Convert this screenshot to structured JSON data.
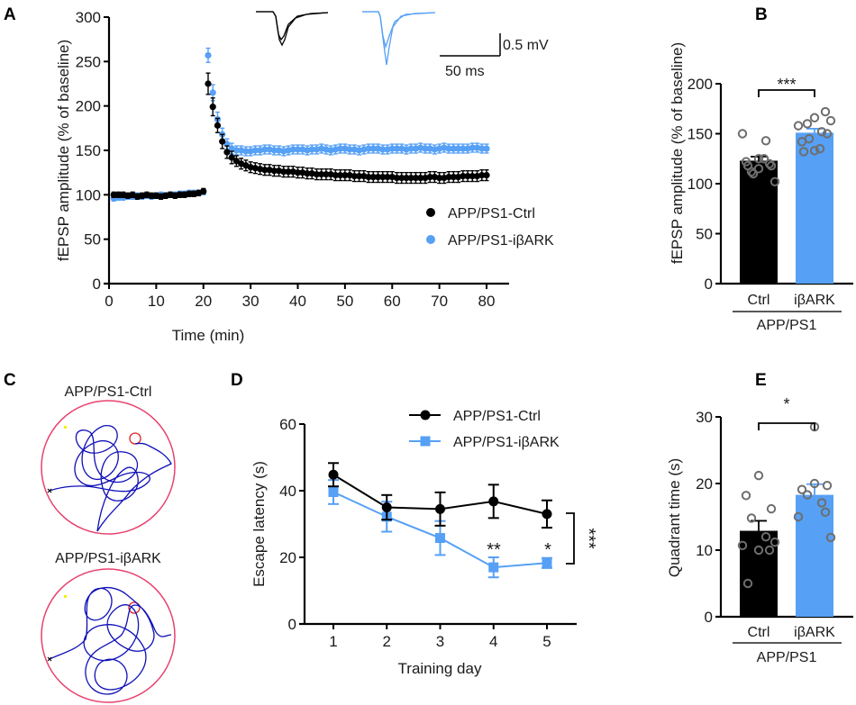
{
  "colors": {
    "ctrl": "#000000",
    "ibark": "#56a0f5",
    "dots": "#6e6e6e",
    "arena": "#e8426e",
    "path": "#1010b8",
    "platform": "#e02020"
  },
  "chart_data": [
    {
      "panel": "A",
      "type": "scatter",
      "title": "",
      "xlabel": "Time (min)",
      "ylabel": "fEPSP amplitude (% of baseline)",
      "xlim": [
        0,
        80
      ],
      "ylim": [
        0,
        300
      ],
      "xticks": [
        0,
        10,
        20,
        30,
        40,
        50,
        60,
        70,
        80
      ],
      "yticks": [
        0,
        50,
        100,
        150,
        200,
        250,
        300
      ],
      "legend": {
        "placement": "center-right",
        "entries": [
          "APP/PS1-Ctrl",
          "APP/PS1-iβARK"
        ]
      },
      "inset": {
        "scale_voltage": "0.5 mV",
        "scale_time": "50 ms"
      },
      "series": [
        {
          "name": "APP/PS1-Ctrl",
          "x_start": 1,
          "x_step": 1,
          "values": [
            100,
            100,
            100,
            99,
            100,
            98,
            99,
            100,
            99,
            99,
            98,
            99,
            100,
            99,
            100,
            100,
            101,
            101,
            102,
            104,
            225,
            199,
            178,
            160,
            148,
            142,
            138,
            135,
            133,
            131,
            130,
            129,
            128,
            128,
            127,
            127,
            126,
            126,
            126,
            125,
            125,
            124,
            124,
            123,
            123,
            123,
            123,
            122,
            122,
            122,
            122,
            121,
            121,
            121,
            120,
            120,
            120,
            120,
            120,
            120,
            119,
            119,
            119,
            119,
            119,
            119,
            119,
            120,
            120,
            119,
            119,
            120,
            120,
            120,
            121,
            121,
            121,
            121,
            122,
            122
          ],
          "errors": [
            3,
            3,
            3,
            3,
            3,
            3,
            3,
            3,
            3,
            3,
            3,
            3,
            3,
            3,
            3,
            3,
            3,
            3,
            3,
            3,
            12,
            10,
            8,
            8,
            7,
            7,
            6,
            6,
            6,
            6,
            6,
            6,
            6,
            6,
            6,
            6,
            6,
            6,
            6,
            6,
            6,
            6,
            6,
            6,
            6,
            6,
            6,
            6,
            6,
            6,
            6,
            6,
            6,
            6,
            6,
            6,
            6,
            6,
            6,
            6,
            6,
            6,
            6,
            6,
            6,
            6,
            6,
            6,
            6,
            6,
            6,
            6,
            6,
            6,
            6,
            6,
            6,
            6,
            6,
            6
          ]
        },
        {
          "name": "APP/PS1-iβARK",
          "x_start": 1,
          "x_step": 1,
          "values": [
            96,
            97,
            97,
            98,
            98,
            99,
            98,
            99,
            98,
            99,
            100,
            99,
            100,
            100,
            101,
            101,
            102,
            102,
            102,
            103,
            257,
            215,
            185,
            168,
            157,
            152,
            150,
            150,
            149,
            149,
            150,
            150,
            151,
            151,
            150,
            150,
            149,
            150,
            151,
            151,
            151,
            150,
            151,
            151,
            152,
            151,
            150,
            151,
            152,
            152,
            151,
            151,
            150,
            151,
            152,
            152,
            152,
            151,
            151,
            152,
            152,
            152,
            151,
            152,
            152,
            153,
            152,
            152,
            151,
            152,
            153,
            152,
            152,
            152,
            152,
            152,
            153,
            153,
            152,
            152
          ],
          "errors": [
            3,
            3,
            3,
            3,
            3,
            3,
            3,
            3,
            3,
            3,
            3,
            3,
            3,
            3,
            3,
            3,
            3,
            3,
            3,
            3,
            8,
            9,
            8,
            7,
            6,
            6,
            5,
            5,
            5,
            5,
            5,
            5,
            5,
            5,
            5,
            5,
            5,
            5,
            5,
            5,
            5,
            5,
            5,
            5,
            5,
            5,
            5,
            5,
            5,
            5,
            5,
            5,
            5,
            5,
            5,
            5,
            5,
            5,
            5,
            5,
            5,
            5,
            5,
            5,
            5,
            5,
            5,
            5,
            5,
            5,
            5,
            5,
            5,
            5,
            5,
            5,
            5,
            5,
            5,
            5
          ]
        }
      ]
    },
    {
      "panel": "B",
      "type": "bar",
      "xlabel": "APP/PS1",
      "ylabel": "fEPSP amplitude (% of baseline)",
      "ylim": [
        0,
        200
      ],
      "yticks": [
        0,
        50,
        100,
        150,
        200
      ],
      "categories": [
        "Ctrl",
        "iβARK"
      ],
      "values": [
        123,
        151
      ],
      "errors": [
        4,
        4
      ],
      "significance": "***",
      "points": [
        [
          125,
          122,
          118,
          112,
          143,
          150,
          102,
          115,
          120,
          118,
          125,
          110
        ],
        [
          133,
          142,
          150,
          160,
          152,
          158,
          163,
          166,
          172,
          132,
          135,
          145
        ]
      ]
    },
    {
      "panel": "D",
      "type": "line",
      "xlabel": "Training day",
      "ylabel": "Escape latency (s)",
      "xlim": [
        0.5,
        5.5
      ],
      "ylim": [
        0,
        60
      ],
      "xticks": [
        1,
        2,
        3,
        4,
        5
      ],
      "yticks": [
        0,
        20,
        40,
        60
      ],
      "legend": {
        "placement": "top-right",
        "entries": [
          "APP/PS1-Ctrl",
          "APP/PS1-iβARK"
        ]
      },
      "x": [
        1,
        2,
        3,
        4,
        5
      ],
      "series": [
        {
          "name": "APP/PS1-Ctrl",
          "marker": "circle",
          "values": [
            44.8,
            35.0,
            34.5,
            36.8,
            33.0
          ],
          "errors": [
            3.5,
            3.7,
            5.0,
            5.0,
            4.1
          ]
        },
        {
          "name": "APP/PS1-iβARK",
          "marker": "square",
          "values": [
            39.6,
            32.2,
            25.8,
            17.0,
            18.3
          ],
          "errors": [
            3.6,
            4.5,
            5.1,
            3.0,
            1.5
          ]
        }
      ],
      "annotations": [
        {
          "x": 4,
          "text": "**"
        },
        {
          "x": 5,
          "text": "*"
        },
        {
          "bracket": "day 5",
          "text": "***"
        }
      ]
    },
    {
      "panel": "E",
      "type": "bar",
      "xlabel": "APP/PS1",
      "ylabel": "Quadrant time (s)",
      "ylim": [
        0,
        30
      ],
      "yticks": [
        0,
        10,
        20,
        30
      ],
      "categories": [
        "Ctrl",
        "iβARK"
      ],
      "values": [
        12.9,
        18.3
      ],
      "errors": [
        1.5,
        1.6
      ],
      "significance": "*",
      "points": [
        [
          21.2,
          18.2,
          16.2,
          14.8,
          12.0,
          10.7,
          11.2,
          10.0,
          10.0,
          5.0
        ],
        [
          28.5,
          19.1,
          19.7,
          18.3,
          17.1,
          15.0,
          11.9,
          20.0,
          15.7
        ]
      ]
    }
  ],
  "panel_labels": {
    "A": "A",
    "B": "B",
    "C": "C",
    "D": "D",
    "E": "E"
  },
  "panel_c": {
    "titles": [
      "APP/PS1-Ctrl",
      "APP/PS1-iβARK"
    ]
  }
}
